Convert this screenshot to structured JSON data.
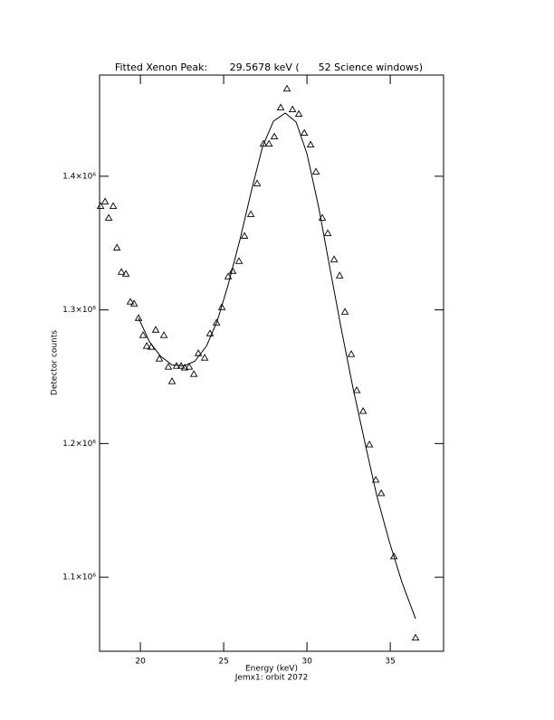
{
  "chart_data": {
    "type": "scatter",
    "title": "Fitted Xenon Peak:       29.5678 keV (      52 Science windows)",
    "x_label": "Energy (keV)",
    "subtitle": "Jemx1: orbit 2072",
    "y_label": "Detector counts",
    "xlim": [
      17.55,
      38.2
    ],
    "ylim": [
      1044600,
      1475700
    ],
    "xticks": [
      20,
      25,
      30,
      35
    ],
    "yticks": [
      {
        "value": 1100000,
        "label": "1.1×10⁶"
      },
      {
        "value": 1200000,
        "label": "1.2×10⁶"
      },
      {
        "value": 1300000,
        "label": "1.3×10⁶"
      },
      {
        "value": 1400000,
        "label": "1.4×10⁶"
      }
    ],
    "color": "#000000",
    "points": {
      "x": [
        17.61,
        17.88,
        18.1,
        18.37,
        18.59,
        18.86,
        19.13,
        19.4,
        19.62,
        19.89,
        20.16,
        20.38,
        20.65,
        20.92,
        21.14,
        21.41,
        21.68,
        21.9,
        22.17,
        22.45,
        22.66,
        22.93,
        23.21,
        23.48,
        23.86,
        24.18,
        24.57,
        24.89,
        25.27,
        25.54,
        25.92,
        26.25,
        26.63,
        27.01,
        27.39,
        27.72,
        28.04,
        28.42,
        28.8,
        29.13,
        29.51,
        29.84,
        30.22,
        30.54,
        30.92,
        31.25,
        31.63,
        31.96,
        32.28,
        32.66,
        32.99,
        33.37,
        33.75,
        34.13,
        34.46,
        35.22,
        36.52
      ],
      "y": [
        1377700,
        1381100,
        1368900,
        1377700,
        1346600,
        1328400,
        1327000,
        1306100,
        1304700,
        1293900,
        1281100,
        1273000,
        1272300,
        1285100,
        1263500,
        1281100,
        1257400,
        1246600,
        1258100,
        1258100,
        1256800,
        1257400,
        1252000,
        1267600,
        1264200,
        1282400,
        1290500,
        1302000,
        1325000,
        1329100,
        1336500,
        1355400,
        1371600,
        1394600,
        1424300,
        1424300,
        1429700,
        1451400,
        1465500,
        1450000,
        1446600,
        1432400,
        1423600,
        1403400,
        1368900,
        1357400,
        1337800,
        1325700,
        1298600,
        1266900,
        1239900,
        1224300,
        1199300,
        1172900,
        1162800,
        1115500,
        1054700
      ]
    },
    "fit": {
      "x": [
        19.89,
        20.54,
        21.2,
        21.9,
        22.61,
        23.26,
        23.97,
        24.62,
        25.27,
        25.98,
        26.68,
        27.34,
        27.99,
        28.7,
        29.35,
        30.0,
        30.71,
        31.36,
        32.07,
        32.77,
        33.48,
        34.18,
        34.95,
        35.71,
        36.52
      ],
      "y": [
        1293900,
        1276300,
        1265500,
        1258800,
        1258100,
        1261500,
        1273000,
        1291900,
        1318900,
        1352700,
        1389900,
        1422300,
        1441200,
        1447300,
        1440500,
        1416900,
        1376400,
        1332400,
        1285100,
        1241200,
        1200700,
        1161500,
        1126400,
        1095900,
        1068900
      ]
    }
  }
}
